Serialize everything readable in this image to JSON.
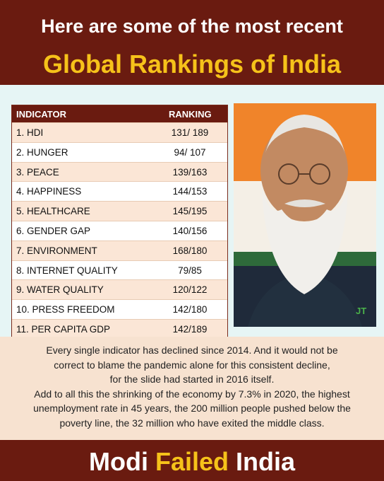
{
  "header": {
    "line1": "Here are some of the most recent",
    "line2": "Global Rankings of India"
  },
  "table": {
    "col_indicator": "INDICATOR",
    "col_ranking": "RANKING",
    "rows": [
      {
        "indicator": "1.  HDI",
        "ranking": "131/ 189"
      },
      {
        "indicator": "2.  HUNGER",
        "ranking": "94/ 107"
      },
      {
        "indicator": "3.  PEACE",
        "ranking": "139/163"
      },
      {
        "indicator": "4.  HAPPINESS",
        "ranking": "144/153"
      },
      {
        "indicator": "5.  HEALTHCARE",
        "ranking": "145/195"
      },
      {
        "indicator": "6.  GENDER GAP",
        "ranking": "140/156"
      },
      {
        "indicator": "7.  ENVIRONMENT",
        "ranking": "168/180"
      },
      {
        "indicator": "8.  INTERNET QUALITY",
        "ranking": "79/85"
      },
      {
        "indicator": "9.  WATER QUALITY",
        "ranking": "120/122"
      },
      {
        "indicator": "10. PRESS FREEDOM",
        "ranking": "142/180"
      },
      {
        "indicator": "11. PER CAPITA GDP",
        "ranking": "142/189"
      }
    ]
  },
  "photo": {
    "watermark": "JT"
  },
  "paragraph": {
    "lines": [
      "Every single indicator has declined since 2014. And it would not be",
      "correct to blame the pandemic alone for this consistent decline,",
      "for the slide had started in 2016 itself.",
      "Add to all this the shrinking of the economy by 7.3% in 2020, the highest",
      "unemployment rate in 45 years, the 200 million people pushed below the",
      "poverty line, the 32 million who have exited the middle class."
    ]
  },
  "footer": {
    "word1": "Modi",
    "word2": "Failed",
    "word3": "India"
  },
  "colors": {
    "maroon": "#6a1b10",
    "gold": "#f6c21a",
    "peach": "#f7e2d0",
    "mint": "#e6f5f5"
  }
}
